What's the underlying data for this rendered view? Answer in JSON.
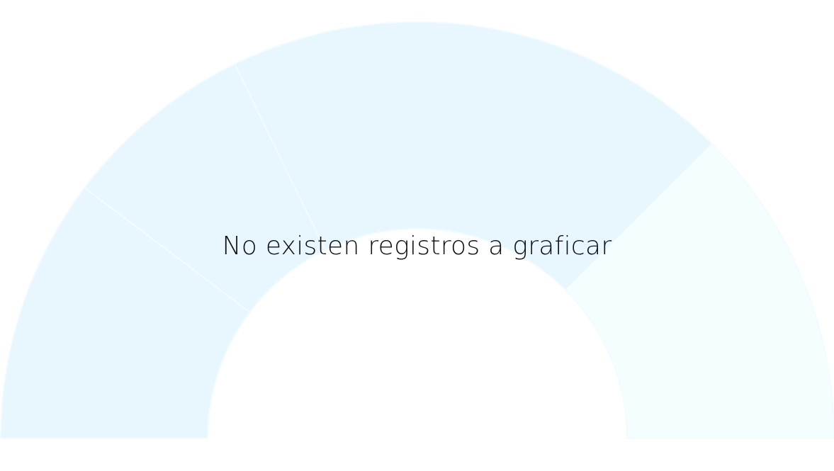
{
  "chart_data": {
    "type": "gauge",
    "message": "No existen registros a graficar",
    "band_colors": [
      "#e8f7fd",
      "#e8f7fd",
      "#e8f6fd",
      "#f4fdff"
    ],
    "separator_color": "#f2fbff"
  }
}
